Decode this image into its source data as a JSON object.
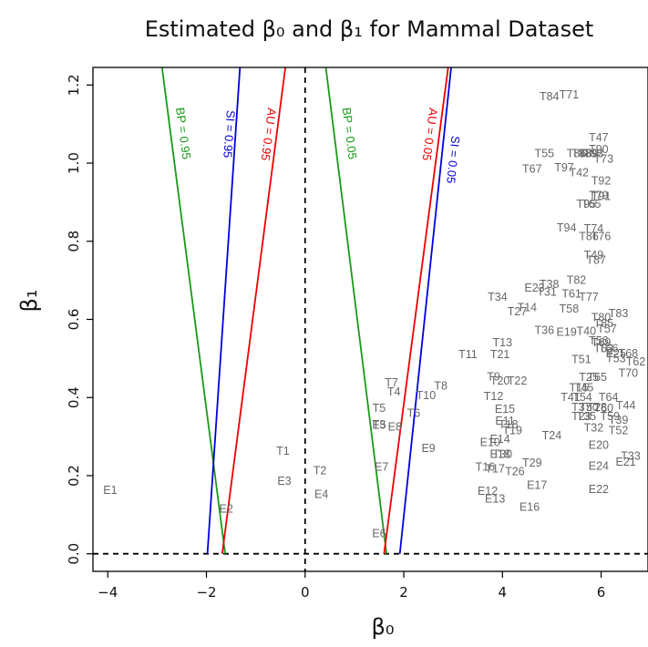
{
  "chart_data": {
    "type": "scatter",
    "title": "Estimated β₀ and β₁ for Mammal Dataset",
    "xlabel": "β₀",
    "ylabel": "β₁",
    "xlim": [
      -4.3,
      6.95
    ],
    "ylim": [
      -0.045,
      1.245
    ],
    "xticks": [
      -4,
      -2,
      0,
      2,
      4,
      6
    ],
    "yticks": [
      0.0,
      0.2,
      0.4,
      0.6,
      0.8,
      1.0,
      1.2
    ],
    "reference_lines": [
      {
        "orientation": "vertical",
        "value": 0,
        "style": "dashed",
        "color": "#000000"
      },
      {
        "orientation": "horizontal",
        "value": 0,
        "style": "dashed",
        "color": "#000000"
      }
    ],
    "boundary_lines": [
      {
        "name": "BP = 0.95",
        "color": "#1a9a1a",
        "p1": [
          -1.62,
          0.0
        ],
        "p2": [
          -2.9,
          1.245
        ],
        "label_x": -2.55,
        "label_y": 1.075
      },
      {
        "name": "SI = 0.95",
        "color": "#0000dd",
        "p1": [
          -1.98,
          0.0
        ],
        "p2": [
          -1.32,
          1.245
        ],
        "label_x": -1.62,
        "label_y": 1.075
      },
      {
        "name": "AU = 0.95",
        "color": "#ee0000",
        "p1": [
          -1.68,
          0.0
        ],
        "p2": [
          -0.4,
          1.245
        ],
        "label_x": -0.82,
        "label_y": 1.075
      },
      {
        "name": "BP = 0.05",
        "color": "#1a9a1a",
        "p1": [
          1.65,
          0.0
        ],
        "p2": [
          0.42,
          1.245
        ],
        "label_x": 0.82,
        "label_y": 1.075
      },
      {
        "name": "AU = 0.05",
        "color": "#ee0000",
        "p1": [
          1.6,
          0.0
        ],
        "p2": [
          2.9,
          1.245
        ],
        "label_x": 2.45,
        "label_y": 1.075
      },
      {
        "name": "SI = 0.05",
        "color": "#0000dd",
        "p1": [
          1.92,
          0.0
        ],
        "p2": [
          2.96,
          1.245
        ],
        "label_x": 2.92,
        "label_y": 1.01
      }
    ],
    "points": [
      {
        "label": "E1",
        "x": -3.95,
        "y": 0.163
      },
      {
        "label": "E2",
        "x": -1.6,
        "y": 0.115
      },
      {
        "label": "T1",
        "x": -0.45,
        "y": 0.263
      },
      {
        "label": "E3",
        "x": -0.42,
        "y": 0.186
      },
      {
        "label": "T2",
        "x": 0.3,
        "y": 0.213
      },
      {
        "label": "E4",
        "x": 0.33,
        "y": 0.152
      },
      {
        "label": "E6",
        "x": 1.5,
        "y": 0.052
      },
      {
        "label": "E7",
        "x": 1.55,
        "y": 0.222
      },
      {
        "label": "T3",
        "x": 1.5,
        "y": 0.33
      },
      {
        "label": "E5",
        "x": 1.5,
        "y": 0.329
      },
      {
        "label": "E8",
        "x": 1.82,
        "y": 0.325
      },
      {
        "label": "T5",
        "x": 1.5,
        "y": 0.372
      },
      {
        "label": "T4",
        "x": 1.8,
        "y": 0.415
      },
      {
        "label": "T6",
        "x": 2.2,
        "y": 0.36
      },
      {
        "label": "T7",
        "x": 1.75,
        "y": 0.438
      },
      {
        "label": "T10",
        "x": 2.45,
        "y": 0.405
      },
      {
        "label": "T8",
        "x": 2.75,
        "y": 0.43
      },
      {
        "label": "E9",
        "x": 2.5,
        "y": 0.27
      },
      {
        "label": "T11",
        "x": 3.3,
        "y": 0.51
      },
      {
        "label": "T12",
        "x": 3.82,
        "y": 0.403
      },
      {
        "label": "T9",
        "x": 3.82,
        "y": 0.453
      },
      {
        "label": "T20",
        "x": 3.95,
        "y": 0.442
      },
      {
        "label": "T22",
        "x": 4.3,
        "y": 0.442
      },
      {
        "label": "E15",
        "x": 4.05,
        "y": 0.37
      },
      {
        "label": "E11",
        "x": 4.05,
        "y": 0.34
      },
      {
        "label": "T18",
        "x": 4.12,
        "y": 0.33
      },
      {
        "label": "T19",
        "x": 4.2,
        "y": 0.315
      },
      {
        "label": "E14",
        "x": 3.95,
        "y": 0.293
      },
      {
        "label": "E10",
        "x": 3.75,
        "y": 0.285
      },
      {
        "label": "E18",
        "x": 3.95,
        "y": 0.255
      },
      {
        "label": "T30",
        "x": 4.0,
        "y": 0.255
      },
      {
        "label": "T16",
        "x": 3.65,
        "y": 0.222
      },
      {
        "label": "T17",
        "x": 3.85,
        "y": 0.218
      },
      {
        "label": "T26",
        "x": 4.25,
        "y": 0.21
      },
      {
        "label": "T29",
        "x": 4.6,
        "y": 0.233
      },
      {
        "label": "E12",
        "x": 3.7,
        "y": 0.16
      },
      {
        "label": "E13",
        "x": 3.85,
        "y": 0.14
      },
      {
        "label": "E17",
        "x": 4.7,
        "y": 0.175
      },
      {
        "label": "E16",
        "x": 4.55,
        "y": 0.12
      },
      {
        "label": "T13",
        "x": 4.0,
        "y": 0.54
      },
      {
        "label": "T21",
        "x": 3.95,
        "y": 0.51
      },
      {
        "label": "T34",
        "x": 3.9,
        "y": 0.657
      },
      {
        "label": "T27",
        "x": 4.3,
        "y": 0.62
      },
      {
        "label": "T14",
        "x": 4.5,
        "y": 0.63
      },
      {
        "label": "T36",
        "x": 4.85,
        "y": 0.572
      },
      {
        "label": "E19",
        "x": 5.3,
        "y": 0.567
      },
      {
        "label": "E23",
        "x": 4.65,
        "y": 0.68
      },
      {
        "label": "T38",
        "x": 4.95,
        "y": 0.69
      },
      {
        "label": "T31",
        "x": 4.9,
        "y": 0.67
      },
      {
        "label": "T82",
        "x": 5.5,
        "y": 0.7
      },
      {
        "label": "T61",
        "x": 5.4,
        "y": 0.665
      },
      {
        "label": "T77",
        "x": 5.75,
        "y": 0.657
      },
      {
        "label": "T58",
        "x": 5.35,
        "y": 0.627
      },
      {
        "label": "T83",
        "x": 6.35,
        "y": 0.615
      },
      {
        "label": "T80",
        "x": 6.0,
        "y": 0.605
      },
      {
        "label": "T85",
        "x": 6.05,
        "y": 0.59
      },
      {
        "label": "T57",
        "x": 6.12,
        "y": 0.575
      },
      {
        "label": "T40",
        "x": 5.7,
        "y": 0.57
      },
      {
        "label": "T56",
        "x": 5.95,
        "y": 0.545
      },
      {
        "label": "T69",
        "x": 6.0,
        "y": 0.54
      },
      {
        "label": "T63",
        "x": 6.05,
        "y": 0.525
      },
      {
        "label": "T66",
        "x": 6.15,
        "y": 0.525
      },
      {
        "label": "E20x",
        "x": 6.3,
        "y": 0.512
      },
      {
        "label": "T68",
        "x": 6.55,
        "y": 0.512
      },
      {
        "label": "T53",
        "x": 6.3,
        "y": 0.5
      },
      {
        "label": "T62",
        "x": 6.7,
        "y": 0.492
      },
      {
        "label": "T51",
        "x": 5.6,
        "y": 0.497
      },
      {
        "label": "T70",
        "x": 6.55,
        "y": 0.462
      },
      {
        "label": "T25",
        "x": 5.75,
        "y": 0.452
      },
      {
        "label": "T65",
        "x": 5.92,
        "y": 0.452
      },
      {
        "label": "T15",
        "x": 5.55,
        "y": 0.425
      },
      {
        "label": "T45",
        "x": 5.65,
        "y": 0.425
      },
      {
        "label": "T41",
        "x": 5.38,
        "y": 0.4
      },
      {
        "label": "T54",
        "x": 5.62,
        "y": 0.4
      },
      {
        "label": "T64",
        "x": 6.15,
        "y": 0.4
      },
      {
        "label": "T37",
        "x": 5.6,
        "y": 0.375
      },
      {
        "label": "T50",
        "x": 5.75,
        "y": 0.375
      },
      {
        "label": "T28",
        "x": 5.92,
        "y": 0.375
      },
      {
        "label": "T60",
        "x": 6.05,
        "y": 0.372
      },
      {
        "label": "T44",
        "x": 6.5,
        "y": 0.38
      },
      {
        "label": "T23",
        "x": 5.6,
        "y": 0.352
      },
      {
        "label": "T35",
        "x": 5.7,
        "y": 0.352
      },
      {
        "label": "T59",
        "x": 6.18,
        "y": 0.352
      },
      {
        "label": "T39",
        "x": 6.35,
        "y": 0.342
      },
      {
        "label": "T32",
        "x": 5.85,
        "y": 0.322
      },
      {
        "label": "T52",
        "x": 6.35,
        "y": 0.315
      },
      {
        "label": "T24",
        "x": 5.0,
        "y": 0.302
      },
      {
        "label": "E20",
        "x": 5.95,
        "y": 0.278
      },
      {
        "label": "T33",
        "x": 6.6,
        "y": 0.25
      },
      {
        "label": "E21",
        "x": 6.5,
        "y": 0.235
      },
      {
        "label": "E24",
        "x": 5.95,
        "y": 0.225
      },
      {
        "label": "E22",
        "x": 5.95,
        "y": 0.165
      },
      {
        "label": "T84",
        "x": 4.95,
        "y": 1.17
      },
      {
        "label": "T71",
        "x": 5.35,
        "y": 1.175
      },
      {
        "label": "T47",
        "x": 5.95,
        "y": 1.065
      },
      {
        "label": "T55",
        "x": 4.85,
        "y": 1.025
      },
      {
        "label": "T86",
        "x": 5.5,
        "y": 1.025
      },
      {
        "label": "T88",
        "x": 5.6,
        "y": 1.025
      },
      {
        "label": "T89",
        "x": 5.75,
        "y": 1.025
      },
      {
        "label": "T90",
        "x": 5.95,
        "y": 1.035
      },
      {
        "label": "T93",
        "x": 5.85,
        "y": 1.025
      },
      {
        "label": "T73",
        "x": 6.05,
        "y": 1.01
      },
      {
        "label": "T67",
        "x": 4.6,
        "y": 0.985
      },
      {
        "label": "T97",
        "x": 5.25,
        "y": 0.988
      },
      {
        "label": "T42",
        "x": 5.55,
        "y": 0.975
      },
      {
        "label": "T92",
        "x": 6.0,
        "y": 0.955
      },
      {
        "label": "T91",
        "x": 6.0,
        "y": 0.915
      },
      {
        "label": "T79",
        "x": 5.95,
        "y": 0.917
      },
      {
        "label": "T95",
        "x": 5.7,
        "y": 0.895
      },
      {
        "label": "T65b",
        "x": 5.8,
        "y": 0.895
      },
      {
        "label": "T94",
        "x": 5.3,
        "y": 0.835
      },
      {
        "label": "T74",
        "x": 5.85,
        "y": 0.832
      },
      {
        "label": "T86b",
        "x": 5.75,
        "y": 0.812
      },
      {
        "label": "T76",
        "x": 6.0,
        "y": 0.812
      },
      {
        "label": "T49",
        "x": 5.85,
        "y": 0.765
      },
      {
        "label": "T87",
        "x": 5.9,
        "y": 0.752
      }
    ],
    "visible_labels": {
      "E20x": "E25",
      "T65b": "T65",
      "T86b": "T86"
    }
  }
}
